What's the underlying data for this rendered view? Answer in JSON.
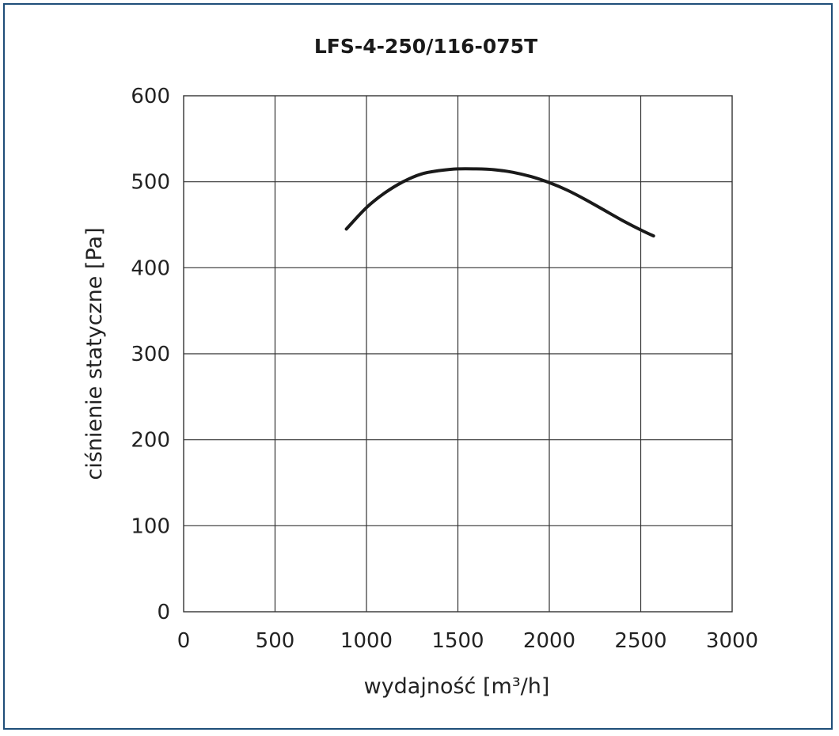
{
  "chart_data": {
    "type": "line",
    "title": "LFS-4-250/116-075T",
    "xlabel": "wydajność [m³/h]",
    "ylabel": "ciśnienie statyczne [Pa]",
    "xlim": [
      0,
      3000
    ],
    "ylim": [
      0,
      600
    ],
    "x_ticks": [
      "0",
      "500",
      "1000",
      "1500",
      "2000",
      "2500",
      "3000"
    ],
    "y_ticks": [
      "0",
      "100",
      "200",
      "300",
      "400",
      "500",
      "600"
    ],
    "grid": true,
    "series": [
      {
        "color": "#1a1a1a",
        "x": [
          890,
          1000,
          1100,
          1200,
          1300,
          1400,
          1500,
          1600,
          1700,
          1800,
          1900,
          2000,
          2100,
          2200,
          2300,
          2400,
          2500,
          2570
        ],
        "y": [
          445,
          470,
          487,
          500,
          509,
          513,
          515,
          515,
          514,
          511,
          506,
          499,
          490,
          479,
          467,
          455,
          444,
          437
        ]
      }
    ]
  }
}
